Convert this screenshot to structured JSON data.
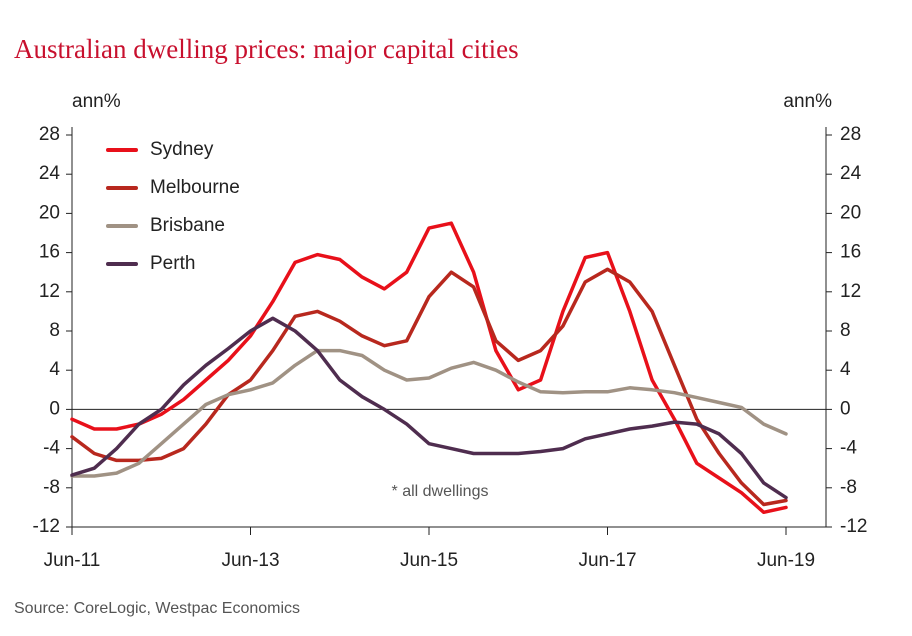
{
  "chart_data": {
    "type": "line",
    "title": "Australian dwelling prices: major capital cities",
    "y_label": "ann%",
    "y2_label": "ann%",
    "annotation": "* all dwellings",
    "source": "Source: CoreLogic, Westpac Economics",
    "categories": [
      "Jun-11",
      null,
      null,
      null,
      null,
      null,
      null,
      null,
      "Jun-13",
      null,
      null,
      null,
      null,
      null,
      null,
      null,
      "Jun-15",
      null,
      null,
      null,
      null,
      null,
      null,
      null,
      "Jun-17",
      null,
      null,
      null,
      null,
      null,
      null,
      null,
      "Jun-19"
    ],
    "ylim": [
      -12,
      28
    ],
    "yticks": [
      -12,
      -8,
      -4,
      0,
      4,
      8,
      12,
      16,
      20,
      24,
      28
    ],
    "y2lim": [
      -12,
      28
    ],
    "y2ticks": [
      -12,
      -8,
      -4,
      0,
      4,
      8,
      12,
      16,
      20,
      24,
      28
    ],
    "legend": "top-left",
    "series": [
      {
        "name": "Sydney",
        "color": "#e8101a",
        "values": [
          -1,
          -2,
          -2,
          -1.5,
          -0.5,
          1,
          3,
          5,
          7.5,
          11,
          15,
          15.8,
          15.3,
          13.5,
          12.3,
          14,
          18.5,
          19,
          14,
          6,
          2,
          3,
          10,
          15.5,
          16,
          10,
          3,
          -1,
          -5.5,
          -7,
          -8.5,
          -10.5,
          -10
        ]
      },
      {
        "name": "Melbourne",
        "color": "#b8281e",
        "values": [
          -2.8,
          -4.5,
          -5.2,
          -5.2,
          -5,
          -4,
          -1.5,
          1.5,
          3,
          6,
          9.5,
          10,
          9,
          7.5,
          6.5,
          7,
          11.5,
          14,
          12.5,
          7,
          5,
          6,
          8.5,
          13,
          14.3,
          13,
          10,
          4.5,
          -1,
          -4.5,
          -7.5,
          -9.7,
          -9.3
        ]
      },
      {
        "name": "Brisbane",
        "color": "#a09284",
        "values": [
          -6.8,
          -6.8,
          -6.5,
          -5.5,
          -3.5,
          -1.5,
          0.5,
          1.5,
          2,
          2.7,
          4.5,
          6,
          6,
          5.5,
          4,
          3,
          3.2,
          4.2,
          4.8,
          4,
          2.8,
          1.8,
          1.7,
          1.8,
          1.8,
          2.2,
          2,
          1.7,
          1.2,
          0.7,
          0.2,
          -1.5,
          -2.5
        ]
      },
      {
        "name": "Perth",
        "color": "#4f2d4f",
        "values": [
          -6.7,
          -6,
          -4,
          -1.5,
          0,
          2.5,
          4.5,
          6.2,
          8,
          9.3,
          8,
          6,
          3,
          1.3,
          0,
          -1.5,
          -3.5,
          -4,
          -4.5,
          -4.5,
          -4.5,
          -4.3,
          -4,
          -3,
          -2.5,
          -2,
          -1.7,
          -1.3,
          -1.5,
          -2.5,
          -4.5,
          -7.5,
          -9
        ]
      }
    ]
  }
}
